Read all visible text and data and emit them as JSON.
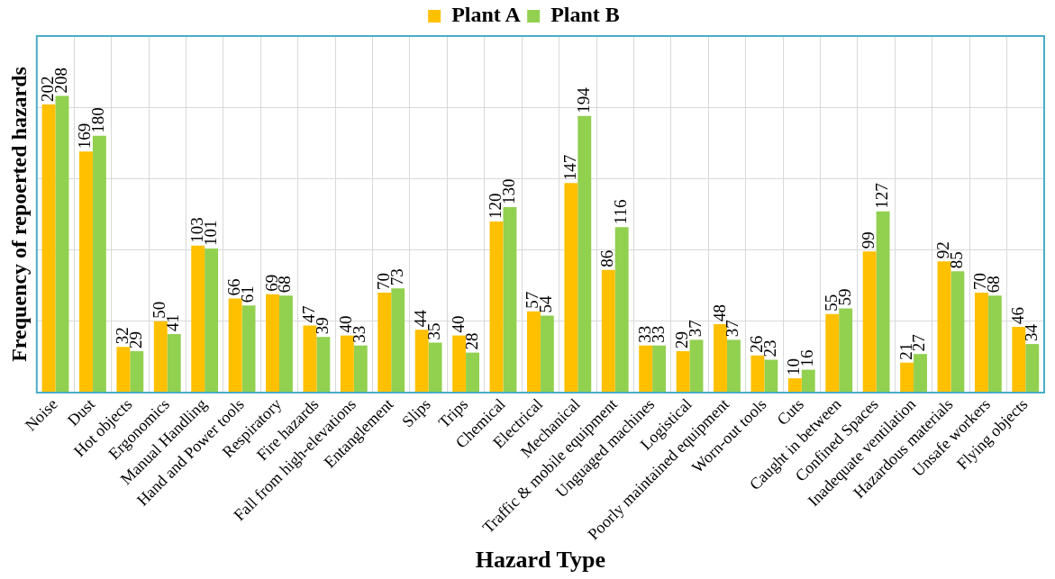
{
  "chart_data": {
    "type": "bar",
    "xlabel": "Hazard Type",
    "ylabel": "Frequency of repoerted hazards",
    "categories": [
      "Noise",
      "Dust",
      "Hot objects",
      "Ergonomics",
      "Manual Handling",
      "Hand and Power tools",
      "Respiratory",
      "Fire hazards",
      "Fall from high-elevations",
      "Entanglement",
      "Slips",
      "Trips",
      "Chemical",
      "Electrical",
      "Mechanical",
      "Traffic & mobile equipment",
      "Unguaged machines",
      "Logistical",
      "Poorly maintained equipment",
      "Worn-out tools",
      "Cuts",
      "Caught in between",
      "Confined Spaces",
      "Inadequate ventilation",
      "Hazardous materials",
      "Unsafe workers",
      "Flying objects"
    ],
    "series": [
      {
        "name": "Plant A",
        "color": "#ffc000",
        "values": [
          202,
          169,
          32,
          50,
          103,
          66,
          69,
          47,
          40,
          70,
          44,
          40,
          120,
          57,
          147,
          86,
          33,
          29,
          48,
          26,
          10,
          55,
          99,
          21,
          92,
          70,
          46
        ]
      },
      {
        "name": "Plant B",
        "color": "#92d050",
        "values": [
          208,
          180,
          29,
          41,
          101,
          61,
          68,
          39,
          33,
          73,
          35,
          28,
          130,
          54,
          194,
          116,
          33,
          37,
          37,
          23,
          16,
          59,
          127,
          27,
          85,
          68,
          34
        ]
      }
    ],
    "ylim": [
      0,
      250
    ],
    "yticks": [
      {
        "value": 0,
        "label": null
      },
      {
        "value": 50,
        "label": null
      },
      {
        "value": 100,
        "label": null
      },
      {
        "value": 150,
        "label": null
      },
      {
        "value": 200,
        "label": null
      },
      {
        "value": 250,
        "label": null
      }
    ],
    "tick_labels": "x",
    "grid": true,
    "legend": "top",
    "data_labels": true
  }
}
